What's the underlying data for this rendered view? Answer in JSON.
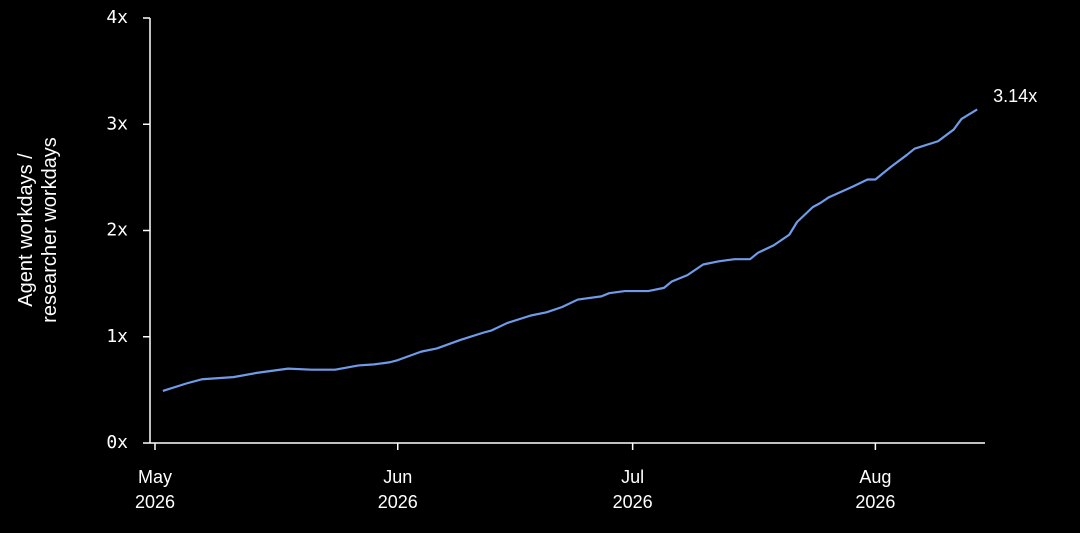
{
  "chart_data": {
    "type": "line",
    "y_label": "Agent workdays / researcher workdays",
    "annotation": "3.14x",
    "x": [
      "2026-05-02",
      "2026-05-05",
      "2026-05-07",
      "2026-05-11",
      "2026-05-14",
      "2026-05-18",
      "2026-05-21",
      "2026-05-24",
      "2026-05-27",
      "2026-05-29",
      "2026-05-31",
      "2026-06-01",
      "2026-06-04",
      "2026-06-06",
      "2026-06-09",
      "2026-06-12",
      "2026-06-13",
      "2026-06-15",
      "2026-06-18",
      "2026-06-20",
      "2026-06-22",
      "2026-06-24",
      "2026-06-27",
      "2026-06-28",
      "2026-06-30",
      "2026-07-03",
      "2026-07-05",
      "2026-07-06",
      "2026-07-08",
      "2026-07-10",
      "2026-07-12",
      "2026-07-14",
      "2026-07-16",
      "2026-07-17",
      "2026-07-19",
      "2026-07-21",
      "2026-07-22",
      "2026-07-24",
      "2026-07-25",
      "2026-07-26",
      "2026-07-29",
      "2026-07-31",
      "2026-08-01",
      "2026-08-03",
      "2026-08-05",
      "2026-08-06",
      "2026-08-09",
      "2026-08-11",
      "2026-08-12",
      "2026-08-14"
    ],
    "series": [
      {
        "color": "#6f9be8",
        "values": [
          0.49,
          0.56,
          0.6,
          0.62,
          0.66,
          0.7,
          0.69,
          0.69,
          0.73,
          0.74,
          0.76,
          0.78,
          0.86,
          0.89,
          0.97,
          1.04,
          1.06,
          1.13,
          1.2,
          1.23,
          1.28,
          1.35,
          1.38,
          1.41,
          1.43,
          1.43,
          1.46,
          1.52,
          1.58,
          1.68,
          1.71,
          1.73,
          1.73,
          1.79,
          1.86,
          1.96,
          2.08,
          2.22,
          2.26,
          2.31,
          2.41,
          2.48,
          2.48,
          2.6,
          2.71,
          2.77,
          2.84,
          2.95,
          3.05,
          3.14
        ]
      }
    ],
    "xlim": [
      "2026-05-01",
      "2026-08-15"
    ],
    "xticks": [
      {
        "value": "2026-05-01",
        "label": "May\n2026"
      },
      {
        "value": "2026-06-01",
        "label": "Jun\n2026"
      },
      {
        "value": "2026-07-01",
        "label": "Jul\n2026"
      },
      {
        "value": "2026-08-01",
        "label": "Aug\n2026"
      }
    ],
    "ylim": [
      0,
      4
    ],
    "yticks": [
      {
        "value": 0,
        "label": "0x"
      },
      {
        "value": 1,
        "label": "1x"
      },
      {
        "value": 2,
        "label": "2x"
      },
      {
        "value": 3,
        "label": "3x"
      },
      {
        "value": 4,
        "label": "4x"
      }
    ]
  }
}
